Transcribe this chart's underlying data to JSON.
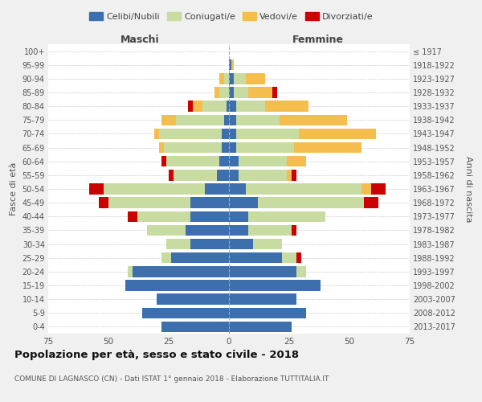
{
  "age_groups": [
    "0-4",
    "5-9",
    "10-14",
    "15-19",
    "20-24",
    "25-29",
    "30-34",
    "35-39",
    "40-44",
    "45-49",
    "50-54",
    "55-59",
    "60-64",
    "65-69",
    "70-74",
    "75-79",
    "80-84",
    "85-89",
    "90-94",
    "95-99",
    "100+"
  ],
  "birth_years": [
    "2013-2017",
    "2008-2012",
    "2003-2007",
    "1998-2002",
    "1993-1997",
    "1988-1992",
    "1983-1987",
    "1978-1982",
    "1973-1977",
    "1968-1972",
    "1963-1967",
    "1958-1962",
    "1953-1957",
    "1948-1952",
    "1943-1947",
    "1938-1942",
    "1933-1937",
    "1928-1932",
    "1923-1927",
    "1918-1922",
    "≤ 1917"
  ],
  "colors": {
    "celibi": "#3d6faf",
    "coniugati": "#c8dba0",
    "vedovi": "#f5bc4e",
    "divorziati": "#cc0000"
  },
  "male": {
    "celibi": [
      28,
      36,
      30,
      43,
      40,
      24,
      16,
      18,
      16,
      16,
      10,
      5,
      4,
      3,
      3,
      2,
      1,
      0,
      0,
      0,
      0
    ],
    "coniugati": [
      0,
      0,
      0,
      0,
      2,
      4,
      10,
      16,
      22,
      34,
      42,
      18,
      22,
      24,
      26,
      20,
      10,
      4,
      2,
      0,
      0
    ],
    "vedovi": [
      0,
      0,
      0,
      0,
      0,
      0,
      0,
      0,
      0,
      0,
      0,
      0,
      0,
      2,
      2,
      6,
      4,
      2,
      2,
      0,
      0
    ],
    "divorziati": [
      0,
      0,
      0,
      0,
      0,
      0,
      0,
      0,
      4,
      4,
      6,
      2,
      2,
      0,
      0,
      0,
      2,
      0,
      0,
      0,
      0
    ]
  },
  "female": {
    "celibi": [
      26,
      32,
      28,
      38,
      28,
      22,
      10,
      8,
      8,
      12,
      7,
      4,
      4,
      3,
      3,
      3,
      3,
      2,
      2,
      1,
      0
    ],
    "coniugati": [
      0,
      0,
      0,
      0,
      4,
      6,
      12,
      18,
      32,
      44,
      48,
      20,
      20,
      24,
      26,
      18,
      12,
      6,
      5,
      0,
      0
    ],
    "vedovi": [
      0,
      0,
      0,
      0,
      0,
      0,
      0,
      0,
      0,
      0,
      4,
      2,
      8,
      28,
      32,
      28,
      18,
      10,
      8,
      1,
      0
    ],
    "divorziati": [
      0,
      0,
      0,
      0,
      0,
      2,
      0,
      2,
      0,
      6,
      6,
      2,
      0,
      0,
      0,
      0,
      0,
      2,
      0,
      0,
      0
    ]
  },
  "xlim": 75,
  "title": "Popolazione per età, sesso e stato civile - 2018",
  "subtitle": "COMUNE DI LAGNASCO (CN) - Dati ISTAT 1° gennaio 2018 - Elaborazione TUTTITALIA.IT",
  "xlabel_left": "Maschi",
  "xlabel_right": "Femmine",
  "ylabel": "Fasce di età",
  "ylabel_right": "Anni di nascita",
  "legend_labels": [
    "Celibi/Nubili",
    "Coniugati/e",
    "Vedovi/e",
    "Divorziati/e"
  ],
  "bg_color": "#f0f0f0",
  "plot_bg": "#ffffff"
}
